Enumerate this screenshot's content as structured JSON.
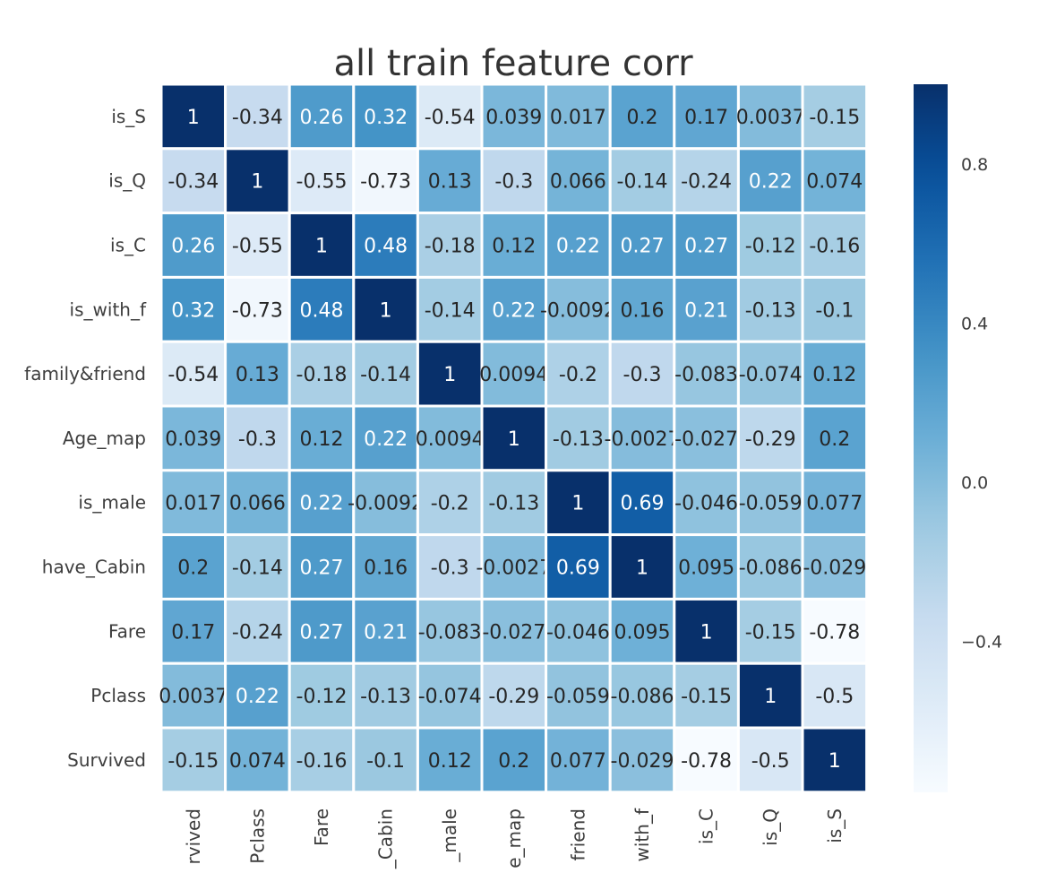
{
  "chart_data": {
    "type": "heatmap",
    "title": "all train feature corr",
    "rows": [
      "is_S",
      "is_Q",
      "is_C",
      "is_with_f",
      "family&friend",
      "Age_map",
      "is_male",
      "have_Cabin",
      "Fare",
      "Pclass",
      "Survived"
    ],
    "cols": [
      "rvived",
      "Pclass",
      "Fare",
      "_Cabin",
      "_male",
      "e_map",
      "friend",
      "with_f",
      "is_C",
      "is_Q",
      "is_S"
    ],
    "values": [
      [
        1,
        -0.34,
        0.26,
        0.32,
        -0.54,
        0.039,
        0.017,
        0.2,
        0.17,
        0.0037,
        -0.15
      ],
      [
        -0.34,
        1,
        -0.55,
        -0.73,
        0.13,
        -0.3,
        0.066,
        -0.14,
        -0.24,
        0.22,
        0.074
      ],
      [
        0.26,
        -0.55,
        1,
        0.48,
        -0.18,
        0.12,
        0.22,
        0.27,
        0.27,
        -0.12,
        -0.16
      ],
      [
        0.32,
        -0.73,
        0.48,
        1,
        -0.14,
        0.22,
        -0.0092,
        0.16,
        0.21,
        -0.13,
        -0.1
      ],
      [
        -0.54,
        0.13,
        -0.18,
        -0.14,
        1,
        0.0094,
        -0.2,
        -0.3,
        -0.083,
        -0.074,
        0.12
      ],
      [
        0.039,
        -0.3,
        0.12,
        0.22,
        0.0094,
        1,
        -0.13,
        -0.0027,
        -0.027,
        -0.29,
        0.2
      ],
      [
        0.017,
        0.066,
        0.22,
        -0.0092,
        -0.2,
        -0.13,
        1,
        0.69,
        -0.046,
        -0.059,
        0.077
      ],
      [
        0.2,
        -0.14,
        0.27,
        0.16,
        -0.3,
        -0.0027,
        0.69,
        1,
        0.095,
        -0.086,
        -0.029
      ],
      [
        0.17,
        -0.24,
        0.27,
        0.21,
        -0.083,
        -0.027,
        -0.046,
        0.095,
        1,
        -0.15,
        -0.78
      ],
      [
        0.0037,
        0.22,
        -0.12,
        -0.13,
        -0.074,
        -0.29,
        -0.059,
        -0.086,
        -0.15,
        1,
        -0.5
      ],
      [
        -0.15,
        0.074,
        -0.16,
        -0.1,
        0.12,
        0.2,
        0.077,
        -0.029,
        -0.78,
        -0.5,
        1
      ]
    ],
    "value_range": [
      -0.78,
      1
    ],
    "colormap": "Blues",
    "colorbar_ticks": [
      "0.8",
      "0.4",
      "0.0",
      "−0.4"
    ],
    "colorbar_tick_values": [
      0.8,
      0.4,
      0.0,
      -0.4
    ],
    "grid": false,
    "legend": "right"
  }
}
